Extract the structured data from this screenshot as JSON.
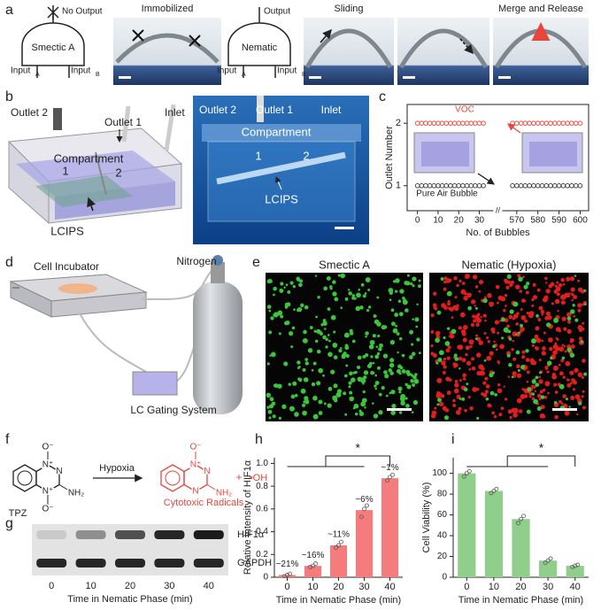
{
  "panel_labels": [
    "a",
    "b",
    "c",
    "d",
    "e",
    "f",
    "g",
    "h",
    "i"
  ],
  "panel_a": {
    "smectic_gate": {
      "output": "No Output",
      "name": "Smectic A",
      "inputs": [
        [
          "Input",
          "A"
        ],
        [
          "Input",
          "B"
        ]
      ]
    },
    "nematic_gate": {
      "output": "Output",
      "name": "Nematic",
      "inputs": [
        [
          "Input",
          "A"
        ],
        [
          "Input",
          "B"
        ]
      ]
    },
    "photo_titles": [
      "Immobilized",
      "Sliding",
      "Merge and Release"
    ]
  },
  "panel_b": {
    "schematic": {
      "outlet_2": "Outlet 2",
      "outlet_1": "Outlet 1",
      "inlet": "Inlet",
      "compartment": "Compartment",
      "chambers": [
        "1",
        "2"
      ],
      "lcips": "LCIPS"
    },
    "photo": {
      "outlet_2": "Outlet 2",
      "outlet_1": "Outlet 1",
      "inlet": "Inlet",
      "compartment": "Compartment",
      "chambers": [
        "1",
        "2"
      ],
      "lcips": "LCIPS"
    }
  },
  "panel_d": {
    "incubator": "Cell Incubator",
    "gas": "Nitrogen",
    "gating": "LC Gating System"
  },
  "panel_e": {
    "titles": [
      "Smectic A",
      "Nematic (Hypoxia)"
    ]
  },
  "panel_f": {
    "reactant": {
      "atoms": [
        "O⁻",
        "N⁺",
        "N",
        "NH₂",
        "N⁺",
        "O⁻"
      ],
      "name": "TPZ"
    },
    "condition": "Hypoxia",
    "product": {
      "atoms": [
        "O⁻",
        "N⁺",
        "N",
        "NH₂",
        "N"
      ],
      "name": "Cytotoxic Radicals"
    },
    "plus": "+",
    "radical": "•OH"
  },
  "panel_g": {
    "bands": [
      "HIF1α",
      "GAPDH"
    ],
    "lanes": [
      "0",
      "10",
      "20",
      "30",
      "40"
    ],
    "xlabel": "Time in Nematic Phase (min)"
  },
  "chart_data": [
    {
      "type": "scatter",
      "ylabel": "Outlet Number",
      "xlabel": "No. of Bubbles",
      "x": [
        0,
        2,
        4,
        6,
        8,
        10,
        12,
        14,
        16,
        18,
        20,
        22,
        24,
        26,
        28,
        30,
        32,
        568,
        570,
        572,
        574,
        576,
        578,
        580,
        582,
        584,
        586,
        588,
        590,
        592,
        594,
        596,
        598,
        600
      ],
      "series": [
        {
          "name": "VOC",
          "color": "#e8453c",
          "values": [
            2,
            2,
            2,
            2,
            2,
            2,
            2,
            2,
            2,
            2,
            2,
            2,
            2,
            2,
            2,
            2,
            2,
            2,
            2,
            2,
            2,
            2,
            2,
            2,
            2,
            2,
            2,
            2,
            2,
            2,
            2,
            2,
            2,
            2
          ]
        },
        {
          "name": "Pure Air Bubble",
          "color": "#333333",
          "values": [
            1,
            1,
            1,
            1,
            1,
            1,
            1,
            1,
            1,
            1,
            1,
            1,
            1,
            1,
            1,
            1,
            1,
            1,
            1,
            1,
            1,
            1,
            1,
            1,
            1,
            1,
            1,
            1,
            1,
            1,
            1,
            1,
            1,
            1
          ]
        }
      ],
      "xlim": [
        -5,
        604
      ],
      "x_break": [
        36,
        564
      ],
      "break_label": "//",
      "xticks": [
        0,
        10,
        20,
        30,
        570,
        580,
        590,
        600
      ],
      "ylim": [
        0.6,
        2.3
      ],
      "yticks": [
        1,
        2
      ]
    },
    {
      "type": "bar",
      "ylabel": "Relative Intensity of HIF1α",
      "xlabel": "Time in Nematic Phase (min)",
      "categories": [
        "0",
        "10",
        "20",
        "30",
        "40"
      ],
      "values": [
        0.02,
        0.1,
        0.28,
        0.59,
        0.87
      ],
      "color": "#f47c7c",
      "annotations": [
        "~21%",
        "~16%",
        "~11%",
        "~6%",
        "~1%"
      ],
      "replicates": [
        [
          0.01,
          0.02,
          0.03
        ],
        [
          0.09,
          0.1,
          0.12
        ],
        [
          0.26,
          0.28,
          0.31
        ],
        [
          0.53,
          0.6,
          0.63
        ],
        [
          0.85,
          0.88,
          0.9
        ]
      ],
      "ylim": [
        0,
        1.05
      ],
      "yticks": [
        0,
        0.2,
        0.4,
        0.6,
        0.8,
        {
          "value": 1,
          "label": "1.0"
        }
      ],
      "significance": "*"
    },
    {
      "type": "bar",
      "ylabel": "Cell Viability (%)",
      "xlabel": "Time in Nematic Phase (min)",
      "categories": [
        "0",
        "10",
        "20",
        "30",
        "40"
      ],
      "values": [
        100,
        83,
        56,
        16,
        11
      ],
      "color": "#8fcf8b",
      "replicates": [
        [
          97,
          100,
          102
        ],
        [
          81,
          83,
          85
        ],
        [
          52,
          56,
          59
        ],
        [
          14,
          16,
          18
        ],
        [
          10,
          11,
          12
        ]
      ],
      "ylim": [
        0,
        115
      ],
      "yticks": [
        0,
        20,
        40,
        60,
        80,
        100
      ],
      "significance": "*"
    }
  ]
}
